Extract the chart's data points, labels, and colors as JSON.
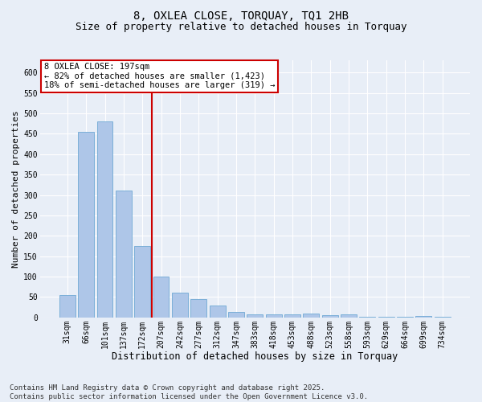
{
  "title": "8, OXLEA CLOSE, TORQUAY, TQ1 2HB",
  "subtitle": "Size of property relative to detached houses in Torquay",
  "xlabel": "Distribution of detached houses by size in Torquay",
  "ylabel": "Number of detached properties",
  "categories": [
    "31sqm",
    "66sqm",
    "101sqm",
    "137sqm",
    "172sqm",
    "207sqm",
    "242sqm",
    "277sqm",
    "312sqm",
    "347sqm",
    "383sqm",
    "418sqm",
    "453sqm",
    "488sqm",
    "523sqm",
    "558sqm",
    "593sqm",
    "629sqm",
    "664sqm",
    "699sqm",
    "734sqm"
  ],
  "values": [
    55,
    455,
    480,
    310,
    175,
    100,
    60,
    45,
    30,
    13,
    8,
    7,
    8,
    9,
    6,
    8,
    2,
    1,
    1,
    3,
    2
  ],
  "bar_color": "#aec6e8",
  "bar_edge_color": "#6fa8d4",
  "bg_color": "#e8eef7",
  "grid_color": "#ffffff",
  "red_line_x": 4.5,
  "annotation_text": "8 OXLEA CLOSE: 197sqm\n← 82% of detached houses are smaller (1,423)\n18% of semi-detached houses are larger (319) →",
  "annotation_box_color": "#ffffff",
  "annotation_box_edge": "#cc0000",
  "ylim": [
    0,
    630
  ],
  "yticks": [
    0,
    50,
    100,
    150,
    200,
    250,
    300,
    350,
    400,
    450,
    500,
    550,
    600
  ],
  "footer": "Contains HM Land Registry data © Crown copyright and database right 2025.\nContains public sector information licensed under the Open Government Licence v3.0.",
  "title_fontsize": 10,
  "subtitle_fontsize": 9,
  "xlabel_fontsize": 8.5,
  "ylabel_fontsize": 8,
  "tick_fontsize": 7,
  "annotation_fontsize": 7.5,
  "footer_fontsize": 6.5
}
